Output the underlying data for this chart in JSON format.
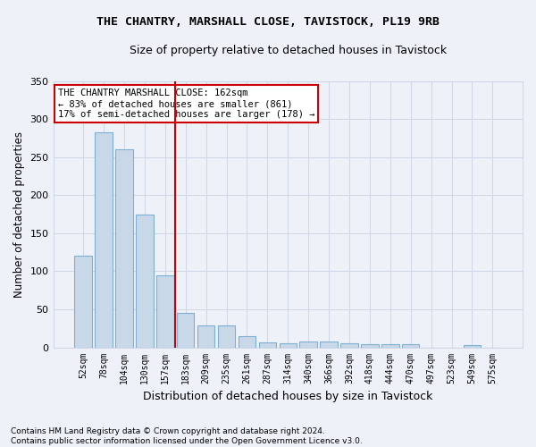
{
  "title1": "THE CHANTRY, MARSHALL CLOSE, TAVISTOCK, PL19 9RB",
  "title2": "Size of property relative to detached houses in Tavistock",
  "xlabel": "Distribution of detached houses by size in Tavistock",
  "ylabel": "Number of detached properties",
  "footnote": "Contains HM Land Registry data © Crown copyright and database right 2024.\nContains public sector information licensed under the Open Government Licence v3.0.",
  "bar_labels": [
    "52sqm",
    "78sqm",
    "104sqm",
    "130sqm",
    "157sqm",
    "183sqm",
    "209sqm",
    "235sqm",
    "261sqm",
    "287sqm",
    "314sqm",
    "340sqm",
    "366sqm",
    "392sqm",
    "418sqm",
    "444sqm",
    "470sqm",
    "497sqm",
    "523sqm",
    "549sqm",
    "575sqm"
  ],
  "bar_values": [
    120,
    282,
    260,
    175,
    95,
    45,
    29,
    29,
    15,
    6,
    5,
    8,
    8,
    5,
    4,
    4,
    4,
    0,
    0,
    3,
    0
  ],
  "bar_color": "#c8d8e8",
  "bar_edge_color": "#7bafd4",
  "grid_color": "#d0d8e8",
  "background_color": "#eef2f8",
  "red_line_x": 4.5,
  "annotation_text": "THE CHANTRY MARSHALL CLOSE: 162sqm\n← 83% of detached houses are smaller (861)\n17% of semi-detached houses are larger (178) →",
  "annotation_box_color": "#ffffff",
  "annotation_border_color": "#cc0000",
  "ylim": [
    0,
    350
  ],
  "yticks": [
    0,
    50,
    100,
    150,
    200,
    250,
    300,
    350
  ]
}
